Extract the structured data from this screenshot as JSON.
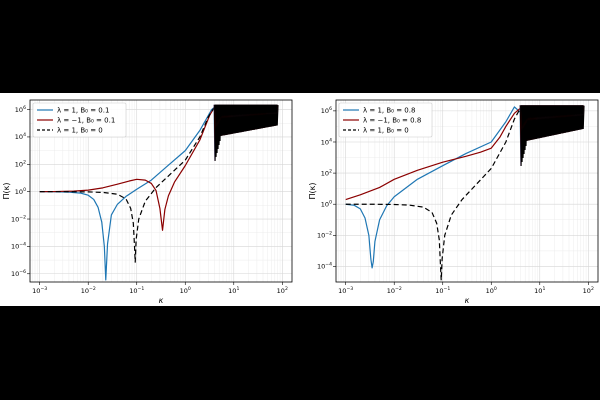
{
  "chart_data": [
    {
      "type": "line",
      "xscale": "log",
      "yscale": "log",
      "xlabel": "κ",
      "ylabel": "Π(κ)",
      "xlim": [
        0.000631,
        158.5
      ],
      "ylim": [
        2.5e-07,
        5000000.0
      ],
      "x_ticks": [
        {
          "v": 0.001,
          "m": "10",
          "e": "−3"
        },
        {
          "v": 0.01,
          "m": "10",
          "e": "−2"
        },
        {
          "v": 0.1,
          "m": "10",
          "e": "−1"
        },
        {
          "v": 1,
          "m": "10",
          "e": "0"
        },
        {
          "v": 10,
          "m": "10",
          "e": "1"
        },
        {
          "v": 100,
          "m": "10",
          "e": "2"
        }
      ],
      "y_ticks": [
        {
          "v": 1e-06,
          "m": "10",
          "e": "−6"
        },
        {
          "v": 0.0001,
          "m": "10",
          "e": "−4"
        },
        {
          "v": 0.01,
          "m": "10",
          "e": "−2"
        },
        {
          "v": 1,
          "m": "10",
          "e": "0"
        },
        {
          "v": 100,
          "m": "10",
          "e": "2"
        },
        {
          "v": 10000.0,
          "m": "10",
          "e": "4"
        },
        {
          "v": 1000000.0,
          "m": "10",
          "e": "6"
        }
      ],
      "grid": true,
      "legend_position": "upper-left",
      "series": [
        {
          "name": "λ = 1, B₀ = 0.1",
          "color": "#1f77b4",
          "dash": "",
          "points": [
            [
              0.001,
              1.0
            ],
            [
              0.002,
              0.98
            ],
            [
              0.004,
              0.93
            ],
            [
              0.007,
              0.78
            ],
            [
              0.01,
              0.55
            ],
            [
              0.013,
              0.27
            ],
            [
              0.016,
              0.07
            ],
            [
              0.019,
              0.006
            ],
            [
              0.0215,
              0.0001
            ],
            [
              0.023,
              3.5e-07
            ],
            [
              0.025,
              0.00015
            ],
            [
              0.03,
              0.02
            ],
            [
              0.04,
              0.12
            ],
            [
              0.06,
              0.45
            ],
            [
              0.1,
              1.5
            ],
            [
              0.2,
              7
            ],
            [
              0.4,
              60
            ],
            [
              1,
              1000
            ],
            [
              2,
              30000
            ],
            [
              3.5,
              1000000
            ],
            [
              4,
              1500000
            ]
          ]
        },
        {
          "name": "λ = −1, B₀ = 0.1",
          "color": "#8b0000",
          "dash": "",
          "points": [
            [
              0.001,
              1.0
            ],
            [
              0.002,
              1.02
            ],
            [
              0.005,
              1.1
            ],
            [
              0.01,
              1.3
            ],
            [
              0.02,
              1.9
            ],
            [
              0.04,
              3.5
            ],
            [
              0.07,
              6
            ],
            [
              0.1,
              8
            ],
            [
              0.15,
              7
            ],
            [
              0.2,
              4
            ],
            [
              0.25,
              1.2
            ],
            [
              0.3,
              0.06
            ],
            [
              0.34,
              0.0015
            ],
            [
              0.38,
              0.05
            ],
            [
              0.45,
              0.5
            ],
            [
              0.6,
              5
            ],
            [
              1,
              80
            ],
            [
              2,
              6000
            ],
            [
              3.2,
              400000
            ],
            [
              4,
              1500000
            ]
          ]
        },
        {
          "name": "λ = 1, B₀ = 0",
          "color": "#000000",
          "dash": "5,3",
          "points": [
            [
              0.001,
              1.0
            ],
            [
              0.004,
              0.99
            ],
            [
              0.01,
              0.96
            ],
            [
              0.02,
              0.88
            ],
            [
              0.04,
              0.65
            ],
            [
              0.06,
              0.3
            ],
            [
              0.075,
              0.06
            ],
            [
              0.085,
              0.005
            ],
            [
              0.09,
              0.0001
            ],
            [
              0.093,
              7e-06
            ],
            [
              0.097,
              0.0003
            ],
            [
              0.11,
              0.01
            ],
            [
              0.15,
              0.2
            ],
            [
              0.25,
              2
            ],
            [
              0.5,
              20
            ],
            [
              1,
              200
            ],
            [
              2,
              10000
            ],
            [
              3,
              300000
            ],
            [
              4,
              1500000
            ]
          ]
        }
      ]
    },
    {
      "type": "line",
      "xscale": "log",
      "yscale": "log",
      "xlabel": "κ",
      "ylabel": "Π(κ)",
      "xlim": [
        0.000631,
        158.5
      ],
      "ylim": [
        1e-05,
        5000000.0
      ],
      "x_ticks": [
        {
          "v": 0.001,
          "m": "10",
          "e": "−3"
        },
        {
          "v": 0.01,
          "m": "10",
          "e": "−2"
        },
        {
          "v": 0.1,
          "m": "10",
          "e": "−1"
        },
        {
          "v": 1,
          "m": "10",
          "e": "0"
        },
        {
          "v": 10,
          "m": "10",
          "e": "1"
        },
        {
          "v": 100,
          "m": "10",
          "e": "2"
        }
      ],
      "y_ticks": [
        {
          "v": 0.0001,
          "m": "10",
          "e": "−4"
        },
        {
          "v": 0.01,
          "m": "10",
          "e": "−2"
        },
        {
          "v": 1,
          "m": "10",
          "e": "0"
        },
        {
          "v": 100,
          "m": "10",
          "e": "2"
        },
        {
          "v": 10000.0,
          "m": "10",
          "e": "4"
        },
        {
          "v": 1000000.0,
          "m": "10",
          "e": "6"
        }
      ],
      "grid": true,
      "legend_position": "upper-left",
      "series": [
        {
          "name": "λ = 1, B₀ = 0.8",
          "color": "#1f77b4",
          "dash": "",
          "points": [
            [
              0.001,
              1.0
            ],
            [
              0.0015,
              0.85
            ],
            [
              0.002,
              0.5
            ],
            [
              0.0025,
              0.13
            ],
            [
              0.003,
              0.01
            ],
            [
              0.0033,
              0.0003
            ],
            [
              0.0035,
              8e-05
            ],
            [
              0.0037,
              0.0002
            ],
            [
              0.004,
              0.004
            ],
            [
              0.005,
              0.1
            ],
            [
              0.007,
              0.8
            ],
            [
              0.01,
              3
            ],
            [
              0.03,
              40
            ],
            [
              0.1,
              300
            ],
            [
              0.3,
              1800
            ],
            [
              1,
              10000
            ],
            [
              2,
              200000
            ],
            [
              3,
              1800000
            ],
            [
              4,
              800000
            ]
          ]
        },
        {
          "name": "λ = −1, B₀ = 0.8",
          "color": "#8b0000",
          "dash": "",
          "points": [
            [
              0.001,
              2
            ],
            [
              0.002,
              4
            ],
            [
              0.005,
              12
            ],
            [
              0.01,
              40
            ],
            [
              0.03,
              150
            ],
            [
              0.1,
              500
            ],
            [
              0.3,
              1200
            ],
            [
              0.6,
              2200
            ],
            [
              1,
              4000
            ],
            [
              1.5,
              20000
            ],
            [
              2,
              100000
            ],
            [
              3,
              700000
            ],
            [
              4,
              1500000
            ]
          ]
        },
        {
          "name": "λ = 1, B₀ = 0",
          "color": "#000000",
          "dash": "5,3",
          "points": [
            [
              0.001,
              1.0
            ],
            [
              0.004,
              0.99
            ],
            [
              0.01,
              0.96
            ],
            [
              0.02,
              0.88
            ],
            [
              0.04,
              0.65
            ],
            [
              0.06,
              0.3
            ],
            [
              0.075,
              0.06
            ],
            [
              0.085,
              0.005
            ],
            [
              0.09,
              0.0001
            ],
            [
              0.093,
              1.3e-05
            ],
            [
              0.097,
              0.0003
            ],
            [
              0.11,
              0.01
            ],
            [
              0.15,
              0.2
            ],
            [
              0.25,
              2
            ],
            [
              0.5,
              20
            ],
            [
              1,
              200
            ],
            [
              2,
              10000
            ],
            [
              3,
              300000
            ],
            [
              4,
              1500000
            ]
          ]
        }
      ]
    }
  ]
}
